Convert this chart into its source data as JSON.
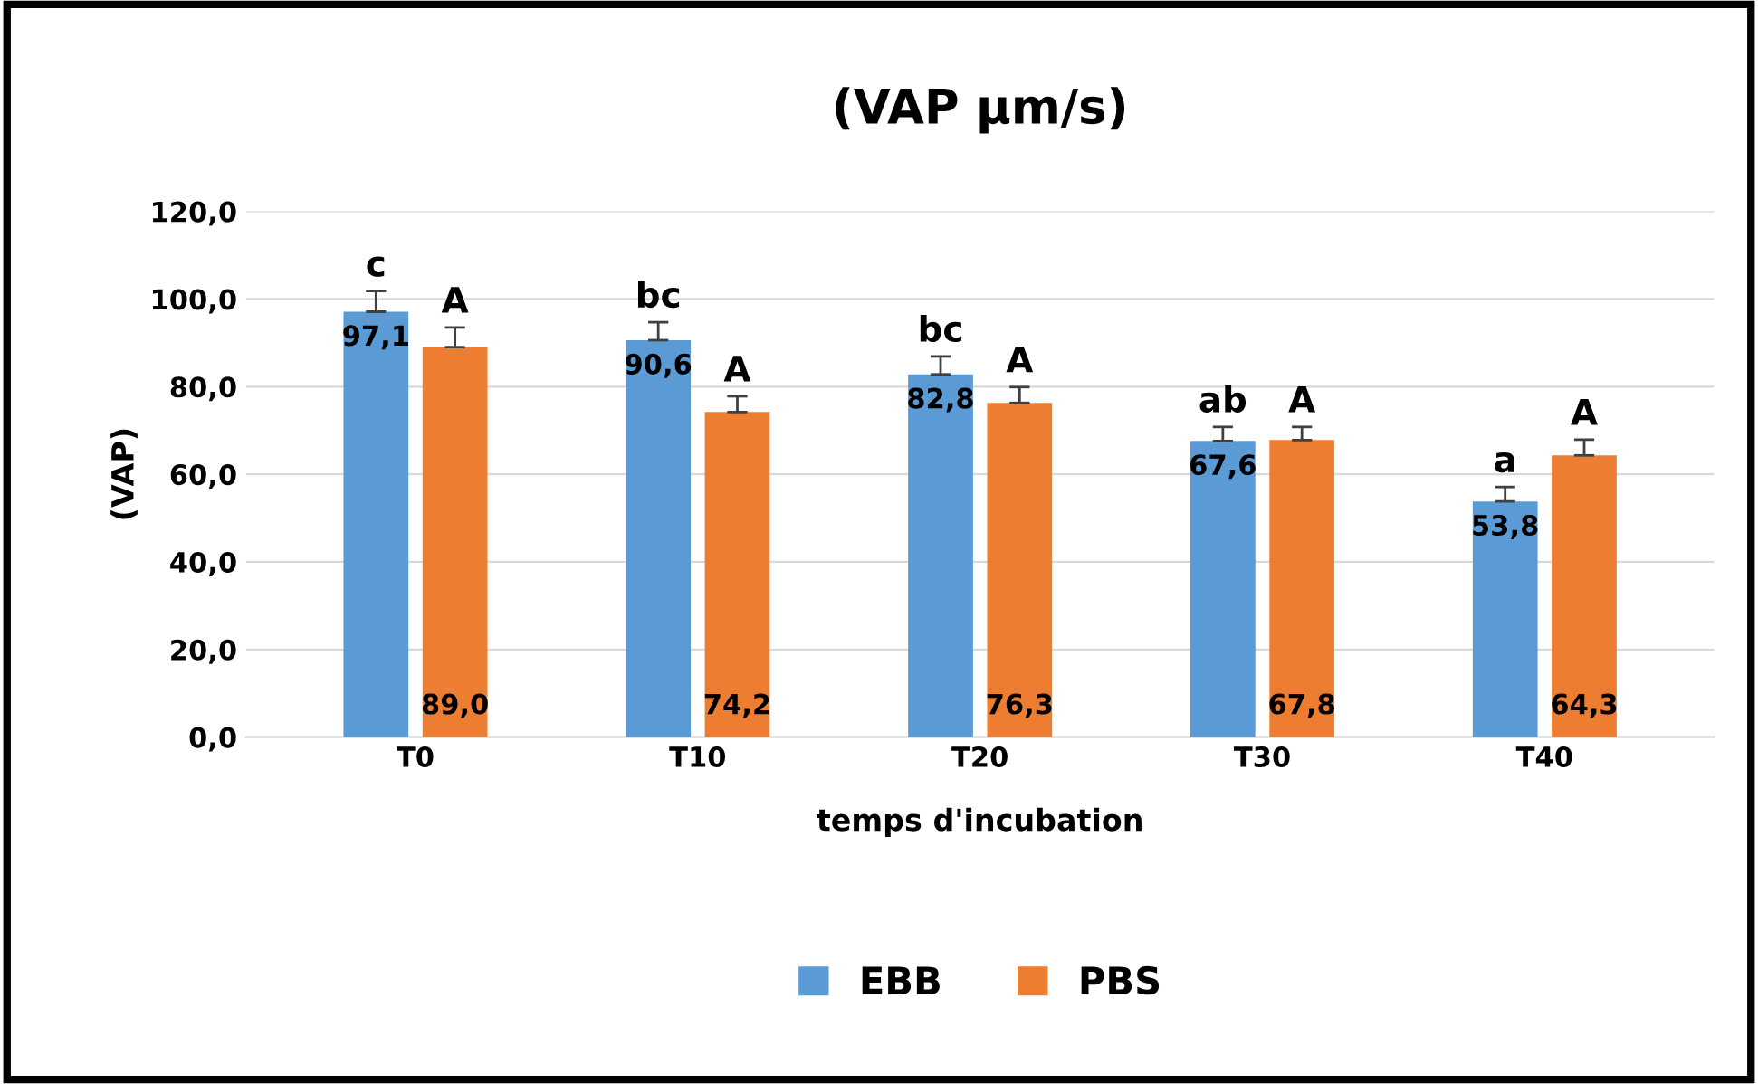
{
  "chart_data": {
    "type": "bar",
    "title": "(VAP µm/s)",
    "xlabel": "temps d'incubation",
    "ylabel": "(VAP)",
    "categories": [
      "T0",
      "T10",
      "T20",
      "T30",
      "T40"
    ],
    "series": [
      {
        "name": "EBB",
        "color": "#5b9bd5",
        "values": [
          97.1,
          90.6,
          82.8,
          67.6,
          53.8
        ],
        "value_labels": [
          "97,1",
          "90,6",
          "82,8",
          "67,6",
          "53,8"
        ],
        "errors": [
          [
            97.1,
            101.8
          ],
          [
            90.6,
            94.7
          ],
          [
            82.8,
            86.9
          ],
          [
            67.6,
            70.8
          ],
          [
            53.8,
            57.1
          ]
        ]
      },
      {
        "name": "PBS",
        "color": "#ed7d31",
        "values": [
          89.0,
          74.2,
          76.3,
          67.8,
          64.3
        ],
        "value_labels": [
          "89,0",
          "74,2",
          "76,3",
          "67,8",
          "64,3"
        ],
        "errors": [
          [
            89.0,
            93.5
          ],
          [
            74.2,
            77.8
          ],
          [
            76.3,
            79.9
          ],
          [
            67.8,
            70.8
          ],
          [
            64.3,
            67.9
          ]
        ]
      }
    ],
    "annotations": [
      "c",
      "bc",
      "bc",
      "ab",
      "a",
      "A",
      "A",
      "A",
      "A",
      "A"
    ],
    "ylim": [
      0,
      120
    ],
    "yticks": [
      {
        "value": 0,
        "label": "0,0"
      },
      {
        "value": 20,
        "label": "20,0"
      },
      {
        "value": 40,
        "label": "40,0"
      },
      {
        "value": 60,
        "label": "60,0"
      },
      {
        "value": 80,
        "label": "80,0"
      },
      {
        "value": 100,
        "label": "100,0"
      },
      {
        "value": 120,
        "label": "120,0"
      }
    ],
    "grid": "y",
    "legend": "bottom"
  }
}
